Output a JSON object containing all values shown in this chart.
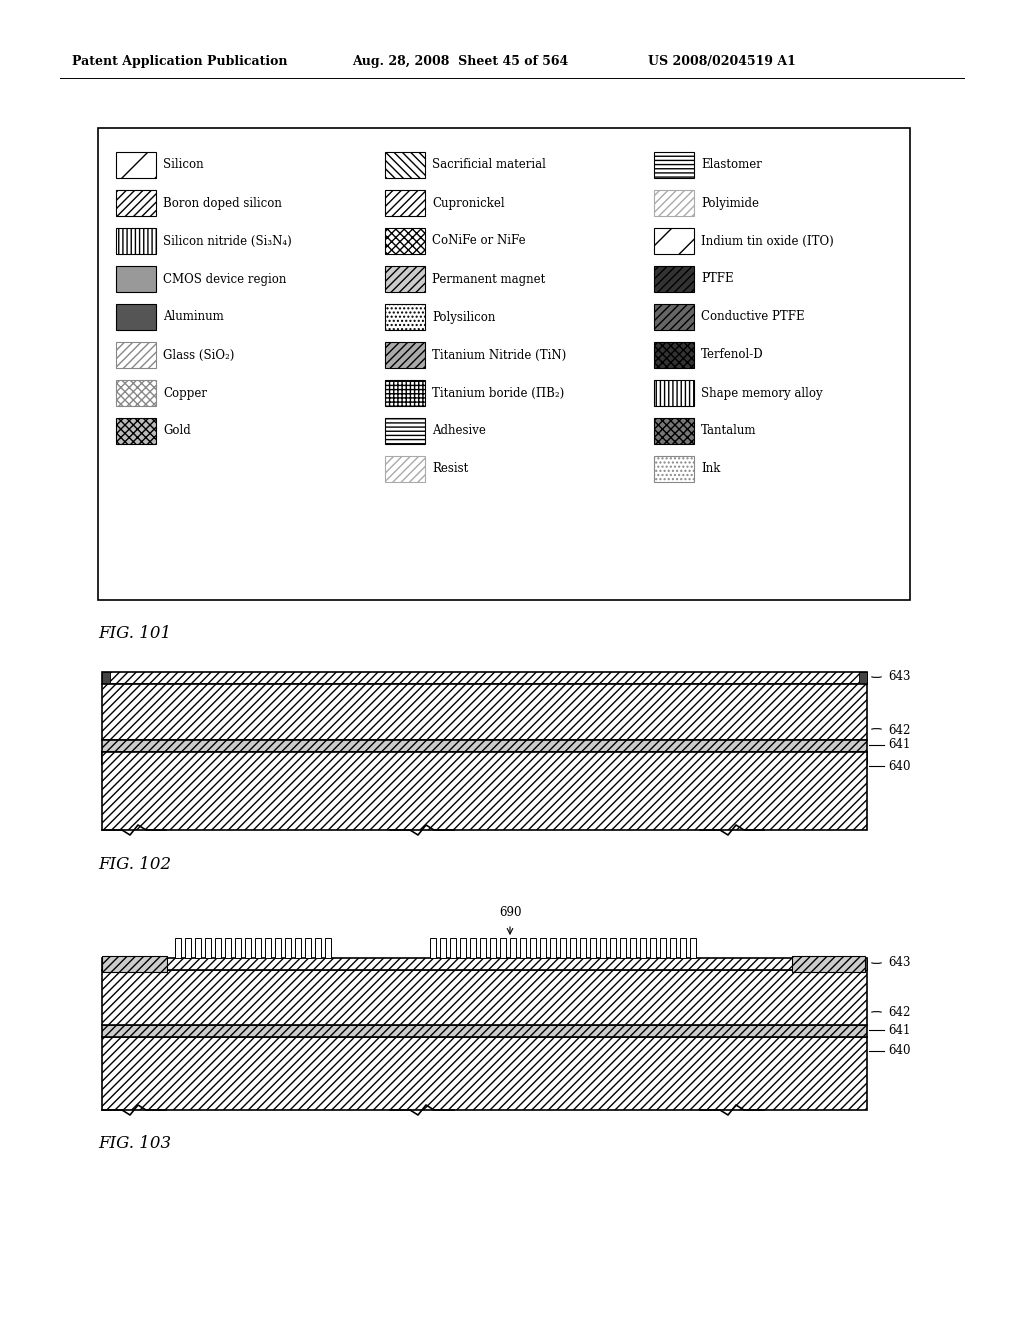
{
  "header_left": "Patent Application Publication",
  "header_mid": "Aug. 28, 2008  Sheet 45 of 564",
  "header_right": "US 2008/0204519 A1",
  "fig101_label": "FIG. 101",
  "fig102_label": "FIG. 102",
  "fig103_label": "FIG. 103",
  "legend_items_col1": [
    [
      "silicon_hatch",
      "Silicon"
    ],
    [
      "boron_hatch",
      "Boron doped silicon"
    ],
    [
      "nitride_hatch",
      "Silicon nitride (Si₃N₄)"
    ],
    [
      "cmos_fill",
      "CMOS device region"
    ],
    [
      "aluminum_fill",
      "Aluminum"
    ],
    [
      "glass_hatch",
      "Glass (SiO₂)"
    ],
    [
      "copper_hatch",
      "Copper"
    ],
    [
      "gold_hatch",
      "Gold"
    ]
  ],
  "legend_items_col2": [
    [
      "sacrificial_hatch",
      "Sacrificial material"
    ],
    [
      "cupronickel_hatch",
      "Cupronickel"
    ],
    [
      "conife_hatch",
      "CoNiFe or NiFe"
    ],
    [
      "permag_hatch",
      "Permanent magnet"
    ],
    [
      "polysilicon_hatch",
      "Polysilicon"
    ],
    [
      "tin_hatch",
      "Titanium Nitride (TiN)"
    ],
    [
      "tib_hatch",
      "Titanium boride (ΠB₂)"
    ],
    [
      "adhesive_hatch",
      "Adhesive"
    ],
    [
      "resist_hatch",
      "Resist"
    ]
  ],
  "legend_items_col3": [
    [
      "elastomer_hatch",
      "Elastomer"
    ],
    [
      "polyimide_hatch",
      "Polyimide"
    ],
    [
      "ito_hatch",
      "Indium tin oxide (ITO)"
    ],
    [
      "ptfe_hatch",
      "PTFE"
    ],
    [
      "cptfe_hatch",
      "Conductive PTFE"
    ],
    [
      "terfenol_hatch",
      "Terfenol-D"
    ],
    [
      "sma_hatch",
      "Shape memory alloy"
    ],
    [
      "tantalum_hatch",
      "Tantalum"
    ],
    [
      "ink_hatch",
      "Ink"
    ]
  ],
  "swatches_col1": [
    {
      "hatch": "/",
      "fc": "white",
      "ec": "black"
    },
    {
      "hatch": "////",
      "fc": "white",
      "ec": "black"
    },
    {
      "hatch": "||||",
      "fc": "white",
      "ec": "black"
    },
    {
      "hatch": "",
      "fc": "#999999",
      "ec": "black"
    },
    {
      "hatch": "",
      "fc": "#555555",
      "ec": "black"
    },
    {
      "hatch": "////",
      "fc": "white",
      "ec": "#888888"
    },
    {
      "hatch": "xxxx",
      "fc": "white",
      "ec": "#888888"
    },
    {
      "hatch": "xxxx",
      "fc": "#bbbbbb",
      "ec": "black"
    }
  ],
  "swatches_col2": [
    {
      "hatch": "\\\\\\\\",
      "fc": "white",
      "ec": "black"
    },
    {
      "hatch": "////",
      "fc": "white",
      "ec": "black"
    },
    {
      "hatch": "xxxx",
      "fc": "white",
      "ec": "black"
    },
    {
      "hatch": "////",
      "fc": "#cccccc",
      "ec": "black"
    },
    {
      "hatch": "....",
      "fc": "white",
      "ec": "black"
    },
    {
      "hatch": "////",
      "fc": "#aaaaaa",
      "ec": "black"
    },
    {
      "hatch": "++++",
      "fc": "white",
      "ec": "black"
    },
    {
      "hatch": "----",
      "fc": "white",
      "ec": "black"
    },
    {
      "hatch": "////",
      "fc": "white",
      "ec": "#aaaaaa"
    }
  ],
  "swatches_col3": [
    {
      "hatch": "----",
      "fc": "white",
      "ec": "black"
    },
    {
      "hatch": "////",
      "fc": "white",
      "ec": "#aaaaaa"
    },
    {
      "hatch": "/",
      "fc": "white",
      "ec": "black"
    },
    {
      "hatch": "////",
      "fc": "#333333",
      "ec": "black"
    },
    {
      "hatch": "////",
      "fc": "#666666",
      "ec": "black"
    },
    {
      "hatch": "xxxx",
      "fc": "#333333",
      "ec": "black"
    },
    {
      "hatch": "||||",
      "fc": "white",
      "ec": "black"
    },
    {
      "hatch": "xxxx",
      "fc": "#777777",
      "ec": "black"
    },
    {
      "hatch": "....",
      "fc": "white",
      "ec": "#888888"
    }
  ]
}
